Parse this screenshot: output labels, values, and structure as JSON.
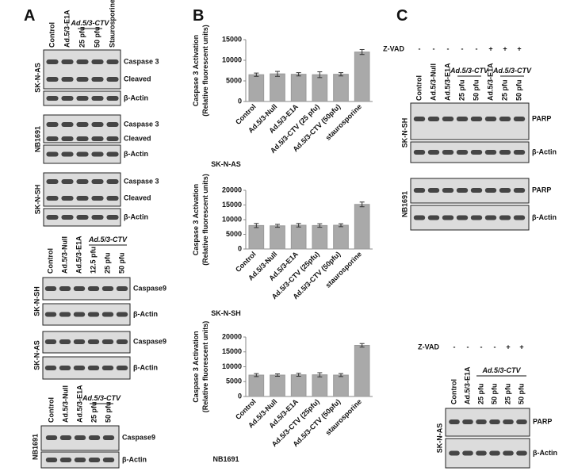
{
  "panel_a": {
    "label": "A",
    "blot_sets": [
      {
        "group": "Ad.5/3-CTV",
        "lanes": [
          "Control",
          "Ad.5/3-E1A",
          "25 pfu",
          "50 pfu",
          "Staurosporine"
        ],
        "blots": [
          {
            "cell_line": "SK-N-AS",
            "bands": [
              "Caspase 3",
              "Cleaved"
            ],
            "control": "β-Actin"
          },
          {
            "cell_line": "NB1691",
            "bands": [
              "Caspase 3",
              "Cleaved"
            ],
            "control": "β-Actin"
          },
          {
            "cell_line": "SK-N-SH",
            "bands": [
              "Caspase 3",
              "Cleaved"
            ],
            "control": "β-Actin"
          }
        ]
      },
      {
        "group": "Ad.5/3-CTV",
        "lanes": [
          "Control",
          "Ad.5/3-Null",
          "Ad.5/3-E1A",
          "12.5 pfu",
          "25 pfu",
          "50 pfu"
        ],
        "blots": [
          {
            "cell_line": "SK-N-SH",
            "bands": [
              "Caspase9"
            ],
            "control": "β-Actin"
          },
          {
            "cell_line": "SK-N-AS",
            "bands": [
              "Caspase9"
            ],
            "control": "β-Actin"
          }
        ]
      },
      {
        "group": "Ad.5/3-CTV",
        "lanes": [
          "Control",
          "Ad.5/3-Null",
          "Ad.5/3-E1A",
          "25 pfu",
          "50 pfu"
        ],
        "blots": [
          {
            "cell_line": "NB1691",
            "bands": [
              "Caspase9"
            ],
            "control": "β-Actin"
          }
        ]
      }
    ]
  },
  "panel_b": {
    "label": "B"
  },
  "chart_data": [
    {
      "type": "bar",
      "title": "SK-N-AS",
      "y_label": "Caspase 3 Activation",
      "y_sublabel": "(Relative fluorescent units)",
      "categories": [
        "Control",
        "Ad.5/3-Null",
        "Ad.5/3-E1A",
        "Ad.5/3-CTV (25 pfu)",
        "Ad.5/3-CTV (50pfu)",
        "staurosporine"
      ],
      "values": [
        6500,
        6700,
        6600,
        6500,
        6600,
        12000
      ],
      "errors": [
        400,
        600,
        400,
        700,
        400,
        600
      ],
      "color": "#a9a9a9",
      "ylim": [
        0,
        15000
      ],
      "yticks": [
        0,
        5000,
        10000,
        15000
      ]
    },
    {
      "type": "bar",
      "title": "SK-N-SH",
      "y_label": "Caspase 3 Activation",
      "y_sublabel": "(Relative fluorescent units)",
      "categories": [
        "Control",
        "Ad.5/3-Null",
        "Ad.5/3-E1A",
        "Ad.5/3-CTV (25pfu)",
        "Ad.5/3-CTV (50pfu)",
        "staurosporine"
      ],
      "values": [
        8000,
        7900,
        8100,
        8000,
        8100,
        15200
      ],
      "errors": [
        700,
        500,
        600,
        600,
        500,
        800
      ],
      "color": "#a9a9a9",
      "ylim": [
        0,
        20000
      ],
      "yticks": [
        0,
        5000,
        10000,
        15000,
        20000
      ]
    },
    {
      "type": "bar",
      "title": "NB1691",
      "y_label": "Caspase 3 Activation",
      "y_sublabel": "(Relative fluorescent units)",
      "categories": [
        "Control",
        "Ad.5/3-Null",
        "Ad.5/3-E1A",
        "Ad.5/3-CTV (25pfu)",
        "Ad.5/3-CTV (50pfu)",
        "staurosporine"
      ],
      "values": [
        7200,
        7200,
        7300,
        7300,
        7200,
        17200
      ],
      "errors": [
        500,
        400,
        500,
        700,
        500,
        600
      ],
      "color": "#a9a9a9",
      "ylim": [
        0,
        20000
      ],
      "yticks": [
        0,
        5000,
        10000,
        15000,
        20000
      ]
    }
  ],
  "panel_c": {
    "label": "C",
    "blot_sets": [
      {
        "treatment": "Z-VAD",
        "signs": [
          "-",
          "-",
          "-",
          "-",
          "-",
          "+",
          "+",
          "+"
        ],
        "groups": [
          "Ad.5/3-CTV",
          "Ad.5/3-CTV"
        ],
        "lanes": [
          "Control",
          "Ad.5/3-Null",
          "Ad.5/3-E1A",
          "25 pfu",
          "50 pfu",
          "Ad.5/3-E1A",
          "25 pfu",
          "50 pfu"
        ],
        "blots": [
          {
            "cell_line": "SK-N-SH",
            "bands": [
              "PARP"
            ],
            "control": "β-Actin"
          },
          {
            "cell_line": "NB1691",
            "bands": [
              "PARP"
            ],
            "control": "β-Actin"
          }
        ]
      },
      {
        "treatment": "Z-VAD",
        "signs": [
          "-",
          "-",
          "-",
          "-",
          "+",
          "+"
        ],
        "groups": [
          "Ad.5/3-CTV"
        ],
        "lanes": [
          "Control",
          "Ad.5/3-E1A",
          "25 pfu",
          "50 pfu",
          "25 pfu",
          "50 pfu"
        ],
        "blots": [
          {
            "cell_line": "SK-N-AS",
            "bands": [
              "PARP"
            ],
            "control": "β-Actin"
          }
        ]
      }
    ]
  }
}
